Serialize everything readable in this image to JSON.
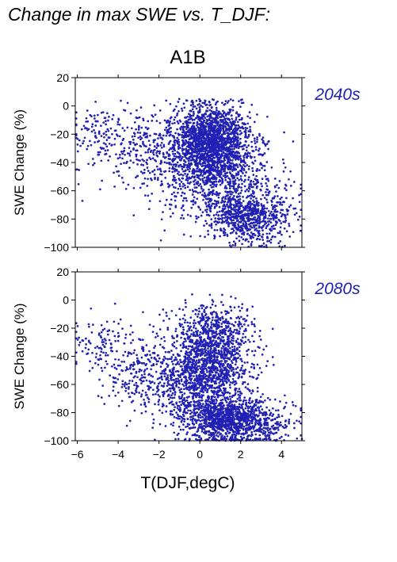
{
  "header": {
    "title": "Change in max SWE vs. T_DJF:",
    "scenario": "A1B"
  },
  "x_axis_label": "T(DJF,degC)",
  "colors": {
    "points": "#2020b4",
    "period_label": "#2020b4",
    "axes": "#000000"
  },
  "chart_data": [
    {
      "type": "scatter",
      "period_label": "2040s",
      "ylabel": "SWE Change (%)",
      "xlim": [
        -6.1,
        5.0
      ],
      "ylim": [
        -100,
        20
      ],
      "xticks": [
        -6,
        -4,
        -2,
        0,
        2,
        4
      ],
      "xtick_labels": [],
      "yticks": [
        20,
        0,
        -20,
        -40,
        -60,
        -80,
        -100
      ],
      "ytick_labels": [
        "20",
        "0",
        "−20",
        "−40",
        "−60",
        "−80",
        "−100"
      ],
      "grid": false,
      "point_count_approx": 3500,
      "clusters": [
        {
          "x": 0.6,
          "y": -25,
          "sx": 0.9,
          "sy": 13,
          "n": 1400
        },
        {
          "x": 1.0,
          "y": -45,
          "sx": 1.3,
          "sy": 17,
          "n": 700
        },
        {
          "x": 2.1,
          "y": -78,
          "sx": 0.9,
          "sy": 9,
          "n": 600
        },
        {
          "x": -0.5,
          "y": -35,
          "sx": 1.2,
          "sy": 20,
          "n": 300
        },
        {
          "x": -2.8,
          "y": -30,
          "sx": 1.2,
          "sy": 16,
          "n": 250
        },
        {
          "x": -5.0,
          "y": -20,
          "sx": 0.6,
          "sy": 9,
          "n": 90
        },
        {
          "x": 3.5,
          "y": -75,
          "sx": 0.8,
          "sy": 12,
          "n": 150
        }
      ]
    },
    {
      "type": "scatter",
      "period_label": "2080s",
      "ylabel": "SWE Change (%)",
      "xlim": [
        -6.1,
        5.0
      ],
      "ylim": [
        -100,
        20
      ],
      "xticks": [
        -6,
        -4,
        -2,
        0,
        2,
        4
      ],
      "xtick_labels": [
        "−6",
        "−4",
        "−2",
        "0",
        "2",
        "4"
      ],
      "yticks": [
        20,
        0,
        -20,
        -40,
        -60,
        -80,
        -100
      ],
      "ytick_labels": [
        "20",
        "0",
        "−20",
        "−40",
        "−60",
        "−80",
        "−100"
      ],
      "grid": false,
      "point_count_approx": 3500,
      "clusters": [
        {
          "x": 0.6,
          "y": -48,
          "sx": 1.0,
          "sy": 17,
          "n": 1100
        },
        {
          "x": 1.3,
          "y": -85,
          "sx": 1.0,
          "sy": 8,
          "n": 1000
        },
        {
          "x": 0.8,
          "y": -20,
          "sx": 0.9,
          "sy": 10,
          "n": 350
        },
        {
          "x": -0.8,
          "y": -55,
          "sx": 1.0,
          "sy": 18,
          "n": 350
        },
        {
          "x": -2.8,
          "y": -52,
          "sx": 1.0,
          "sy": 15,
          "n": 250
        },
        {
          "x": -5.0,
          "y": -32,
          "sx": 0.7,
          "sy": 11,
          "n": 90
        },
        {
          "x": 3.2,
          "y": -88,
          "sx": 0.9,
          "sy": 8,
          "n": 200
        }
      ]
    }
  ]
}
